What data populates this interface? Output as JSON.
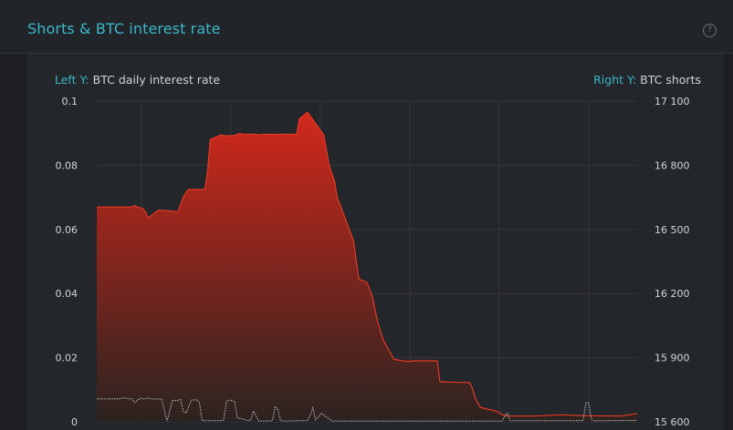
{
  "header": {
    "title": "Shorts & BTC interest rate",
    "help_icon": "?"
  },
  "left_axis": {
    "key": "Left Y:",
    "label": "BTC daily interest rate"
  },
  "right_axis": {
    "key": "Right Y:",
    "label": "BTC shorts"
  },
  "colors": {
    "accent": "#3bb7c8",
    "area_top": "#d2281b",
    "area_bottom": "#2b2320",
    "line": "#e43a22",
    "shorts_line": "#b9bcc0"
  },
  "chart_data": {
    "type": "area",
    "left_ylim": [
      0,
      0.1
    ],
    "right_ylim": [
      15600,
      17100
    ],
    "left_ticks": [
      "0",
      "0.02",
      "0.04",
      "0.06",
      "0.08",
      "0.1"
    ],
    "right_ticks": [
      "15 600",
      "15 900",
      "16 200",
      "16 500",
      "16 800",
      "17 100"
    ],
    "x": [
      0,
      13,
      14,
      15,
      17,
      18,
      19,
      22,
      23,
      24,
      30,
      32,
      33,
      34,
      40,
      41,
      42,
      46,
      47,
      50,
      51,
      52,
      53,
      54,
      59,
      60,
      61,
      63,
      66,
      68,
      74,
      75,
      78,
      84,
      86,
      88,
      89,
      95,
      97,
      100,
      102,
      104,
      106,
      110,
      112,
      115,
      117,
      126,
      127,
      138,
      139,
      140,
      142,
      148,
      150,
      151,
      152,
      162,
      172,
      180,
      194,
      200
    ],
    "series": [
      {
        "axis": "left",
        "values": [
          0.067,
          0.067,
          0.0675,
          0.067,
          0.0665,
          0.0655,
          0.0635,
          0.0655,
          0.066,
          0.066,
          0.0655,
          0.07,
          0.0715,
          0.0725,
          0.0725,
          0.078,
          0.088,
          0.0895,
          0.0892,
          0.0892,
          0.0893,
          0.0897,
          0.0899,
          0.0897,
          0.0897,
          0.0894,
          0.0897,
          0.0897,
          0.0896,
          0.0897,
          0.0897,
          0.0945,
          0.0965,
          0.0895,
          0.08,
          0.075,
          0.07,
          0.0565,
          0.0445,
          0.0435,
          0.039,
          0.031,
          0.0255,
          0.0195,
          0.0192,
          0.0188,
          0.019,
          0.019,
          0.0125,
          0.0122,
          0.0105,
          0.0075,
          0.0045,
          0.0033,
          0.0022,
          0.0022,
          0.0018,
          0.0018,
          0.0022,
          0.0019,
          0.0018,
          0.0025
        ]
      },
      {
        "axis": "right",
        "x": [
          0,
          8,
          10,
          12,
          13,
          14,
          16,
          17,
          18,
          19,
          20,
          21,
          22,
          24,
          26,
          28,
          30,
          31,
          32,
          33,
          35,
          37,
          38,
          39,
          45,
          47,
          48,
          49,
          51,
          52,
          56,
          57,
          58,
          60,
          64,
          65,
          66,
          67,
          68,
          70,
          75,
          78,
          79,
          80,
          81,
          82,
          83,
          87,
          90,
          150,
          151,
          152,
          153,
          180,
          181,
          182,
          183,
          184,
          185,
          200
        ],
        "values": [
          15707,
          15707,
          15712,
          15708,
          15708,
          15690,
          15710,
          15707,
          15708,
          15712,
          15707,
          15706,
          15707,
          15707,
          15603,
          15700,
          15700,
          15705,
          15650,
          15640,
          15702,
          15703,
          15690,
          15605,
          15605,
          15608,
          15695,
          15702,
          15695,
          15620,
          15605,
          15608,
          15650,
          15604,
          15604,
          15605,
          15670,
          15660,
          15605,
          15604,
          15605,
          15606,
          15630,
          15665,
          15610,
          15622,
          15640,
          15604,
          15604,
          15604,
          15625,
          15640,
          15605,
          15605,
          15690,
          15688,
          15615,
          15604,
          15605,
          15607
        ]
      }
    ]
  }
}
